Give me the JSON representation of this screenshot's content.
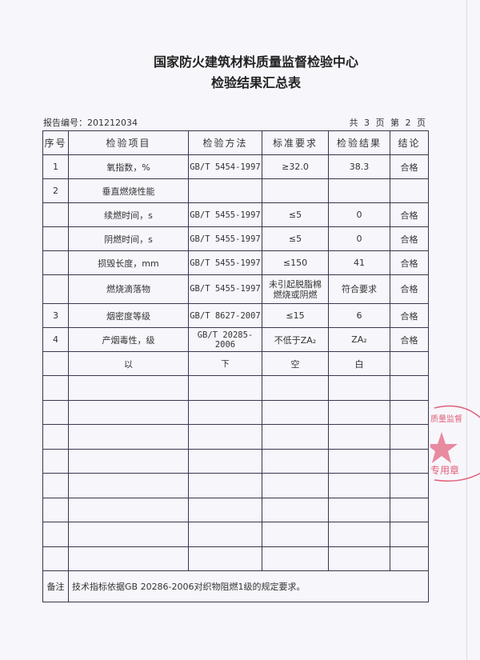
{
  "header": {
    "title": "国家防火建筑材料质量监督检验中心",
    "subtitle": "检验结果汇总表",
    "report_no": "报告编号：201212034",
    "page_info": "共 3 页 第 2 页"
  },
  "table": {
    "columns": [
      "序号",
      "检验项目",
      "检验方法",
      "标准要求",
      "检验结果",
      "结论"
    ],
    "rows": [
      [
        "1",
        "氧指数，%",
        "GB/T 5454-1997",
        "≥32.0",
        "38.3",
        "合格"
      ],
      [
        "2",
        "垂直燃烧性能",
        "",
        "",
        "",
        ""
      ],
      [
        "",
        "续燃时间，s",
        "GB/T 5455-1997",
        "≤5",
        "0",
        "合格"
      ],
      [
        "",
        "阴燃时间，s",
        "GB/T 5455-1997",
        "≤5",
        "0",
        "合格"
      ],
      [
        "",
        "损毁长度，mm",
        "GB/T 5455-1997",
        "≤150",
        "41",
        "合格"
      ],
      [
        "",
        "燃烧滴落物",
        "GB/T 5455-1997",
        "未引起脱脂棉燃烧或阴燃",
        "符合要求",
        "合格"
      ],
      [
        "3",
        "烟密度等级",
        "GB/T 8627-2007",
        "≤15",
        "6",
        "合格"
      ],
      [
        "4",
        "产烟毒性，级",
        "GB/T 20285-2006",
        "不低于ZA₂",
        "ZA₂",
        "合格"
      ],
      [
        "",
        "以",
        "下",
        "空",
        "白",
        ""
      ]
    ],
    "empty_rows": 8,
    "remark_label": "备注",
    "remark_text": "技术指标依据GB 20286-2006对织物阻燃1级的规定要求。"
  },
  "stamp": {
    "text_top": "质量监督",
    "text_bottom": "专用章",
    "color": "#e0607a"
  }
}
